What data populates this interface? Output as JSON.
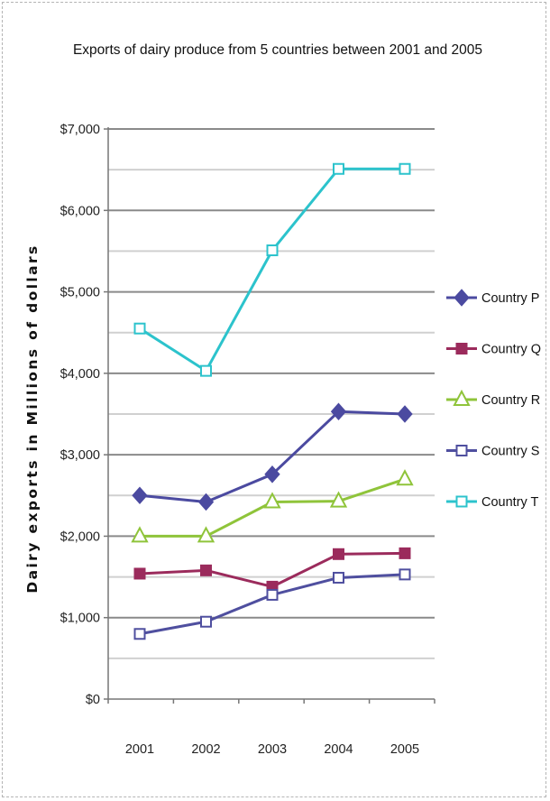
{
  "chart_data": {
    "type": "line",
    "title": "Exports of dairy produce from 5 countries between 2001 and 2005",
    "ylabel": "Dairy exports in Millions of dollars",
    "xlabel": "",
    "categories": [
      "2001",
      "2002",
      "2003",
      "2004",
      "2005"
    ],
    "ylim": [
      0,
      7000
    ],
    "yticks": [
      0,
      1000,
      2000,
      3000,
      4000,
      5000,
      6000,
      7000
    ],
    "ytick_labels": [
      "$0",
      "$1,000",
      "$2,000",
      "$3,000",
      "$4,000",
      "$5,000",
      "$6,000",
      "$7,000"
    ],
    "grid": true,
    "legend_position": "right",
    "series": [
      {
        "name": "Country P",
        "color": "#4b4aa0",
        "marker": "diamond",
        "values": [
          2500,
          2420,
          2760,
          3530,
          3500
        ]
      },
      {
        "name": "Country Q",
        "color": "#9b2b5c",
        "marker": "square",
        "values": [
          1540,
          1580,
          1380,
          1780,
          1790
        ]
      },
      {
        "name": "Country R",
        "color": "#8fc43a",
        "marker": "triangle",
        "values": [
          2000,
          2000,
          2420,
          2430,
          2700
        ]
      },
      {
        "name": "Country S",
        "color": "#4f4f9f",
        "marker": "square-open",
        "values": [
          800,
          950,
          1280,
          1490,
          1530
        ]
      },
      {
        "name": "Country T",
        "color": "#2cc3cc",
        "marker": "square-open",
        "values": [
          4550,
          4030,
          5510,
          6510,
          6510
        ]
      }
    ]
  }
}
